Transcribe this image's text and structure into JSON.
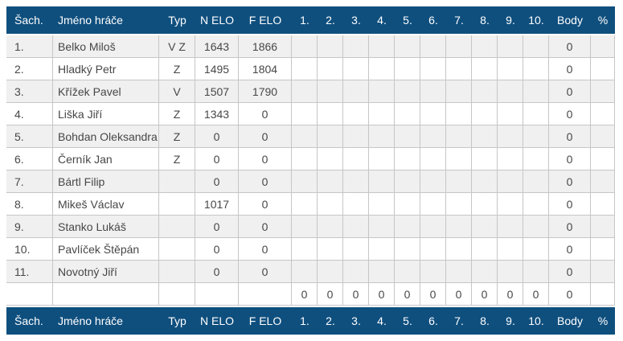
{
  "colors": {
    "header_bg": "#0f4f7e",
    "header_text": "#ffffff",
    "grid_line": "#c6c6c6",
    "row_stripe": "#f0f0f0",
    "row_white": "#ffffff",
    "body_text": "#474747"
  },
  "columns": [
    "Šach.",
    "Jméno hráče",
    "Typ",
    "N ELO",
    "F ELO",
    "1.",
    "2.",
    "3.",
    "4.",
    "5.",
    "6.",
    "7.",
    "8.",
    "9.",
    "10.",
    "Body",
    "%"
  ],
  "rows": [
    [
      "1.",
      "Belko Miloš",
      "V Z",
      "1643",
      "1866",
      "",
      "",
      "",
      "",
      "",
      "",
      "",
      "",
      "",
      "",
      "0",
      ""
    ],
    [
      "2.",
      "Hladký Petr",
      "Z",
      "1495",
      "1804",
      "",
      "",
      "",
      "",
      "",
      "",
      "",
      "",
      "",
      "",
      "0",
      ""
    ],
    [
      "3.",
      "Křížek Pavel",
      "V",
      "1507",
      "1790",
      "",
      "",
      "",
      "",
      "",
      "",
      "",
      "",
      "",
      "",
      "0",
      ""
    ],
    [
      "4.",
      "Liška Jiří",
      "Z",
      "1343",
      "0",
      "",
      "",
      "",
      "",
      "",
      "",
      "",
      "",
      "",
      "",
      "0",
      ""
    ],
    [
      "5.",
      "Bohdan Oleksandra",
      "Z",
      "0",
      "0",
      "",
      "",
      "",
      "",
      "",
      "",
      "",
      "",
      "",
      "",
      "0",
      ""
    ],
    [
      "6.",
      "Černík Jan",
      "Z",
      "0",
      "0",
      "",
      "",
      "",
      "",
      "",
      "",
      "",
      "",
      "",
      "",
      "0",
      ""
    ],
    [
      "7.",
      "Bártl Filip",
      "",
      "0",
      "0",
      "",
      "",
      "",
      "",
      "",
      "",
      "",
      "",
      "",
      "",
      "0",
      ""
    ],
    [
      "8.",
      "Mikeš Václav",
      "",
      "1017",
      "0",
      "",
      "",
      "",
      "",
      "",
      "",
      "",
      "",
      "",
      "",
      "0",
      ""
    ],
    [
      "9.",
      "Stanko Lukáš",
      "",
      "0",
      "0",
      "",
      "",
      "",
      "",
      "",
      "",
      "",
      "",
      "",
      "",
      "0",
      ""
    ],
    [
      "10.",
      "Pavlíček Štěpán",
      "",
      "0",
      "0",
      "",
      "",
      "",
      "",
      "",
      "",
      "",
      "",
      "",
      "",
      "0",
      ""
    ],
    [
      "11.",
      "Novotný Jiří",
      "",
      "0",
      "0",
      "",
      "",
      "",
      "",
      "",
      "",
      "",
      "",
      "",
      "",
      "0",
      ""
    ]
  ],
  "totals_row": [
    "",
    "",
    "",
    "",
    "",
    "0",
    "0",
    "0",
    "0",
    "0",
    "0",
    "0",
    "0",
    "0",
    "0",
    "0",
    ""
  ],
  "footer_columns": [
    "Šach.",
    "Jméno hráče",
    "Typ",
    "N ELO",
    "F ELO",
    "1.",
    "2.",
    "3.",
    "4.",
    "5.",
    "6.",
    "7.",
    "8.",
    "9.",
    "10.",
    "Body",
    "%"
  ]
}
